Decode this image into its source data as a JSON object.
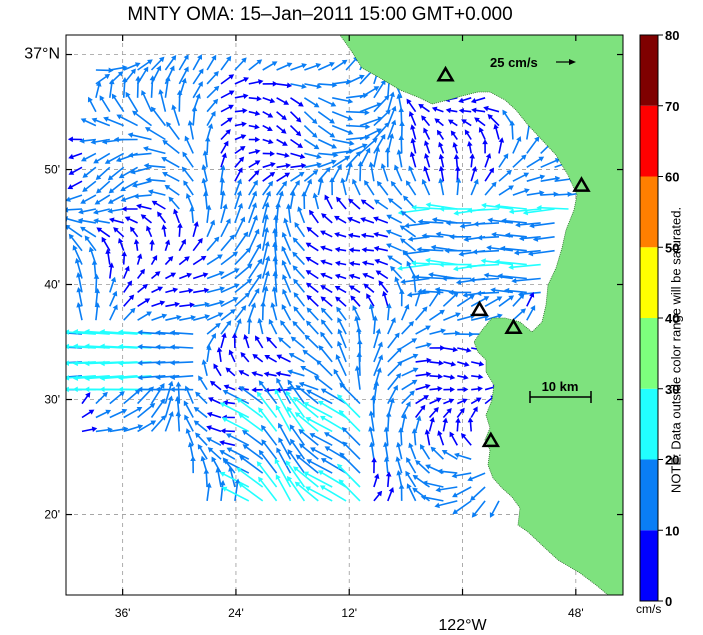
{
  "title": "MNTY OMA: 15–Jan–2011 15:00 GMT+0.000",
  "map": {
    "lat_ticks": [
      {
        "label": "37°N",
        "lat": 37.0,
        "big": true
      },
      {
        "label": "50'",
        "lat": 36.8333
      },
      {
        "label": "40'",
        "lat": 36.6667
      },
      {
        "label": "30'",
        "lat": 36.5
      },
      {
        "label": "20'",
        "lat": 36.3333
      }
    ],
    "lon_ticks": [
      {
        "label": "36'",
        "lon": -122.6
      },
      {
        "label": "24'",
        "lon": -122.4
      },
      {
        "label": "12'",
        "lon": -122.2
      },
      {
        "label": "122°W",
        "lon": -122.0,
        "big": true
      },
      {
        "label": "48'",
        "lon": -121.8
      }
    ],
    "reference_arrow": {
      "label": "25 cm/s",
      "speed_cms": 25
    },
    "scale_bar": {
      "label": "10 km",
      "km": 10
    },
    "land_color": "#7ee27e",
    "sites": [
      {
        "lat": 36.97,
        "lon": -122.03
      },
      {
        "lat": 36.81,
        "lon": -121.79
      },
      {
        "lat": 36.63,
        "lon": -121.97
      },
      {
        "lat": 36.604,
        "lon": -121.91
      },
      {
        "lat": 36.44,
        "lon": -121.95
      }
    ]
  },
  "colorbar": {
    "units": "cm/s",
    "ticks": [
      "0",
      "10",
      "20",
      "30",
      "40",
      "50",
      "60",
      "70",
      "80"
    ],
    "colors": [
      "#0000ff",
      "#0a7ef5",
      "#22ffff",
      "#7dff7d",
      "#ffff00",
      "#ff7f00",
      "#ff0000",
      "#7f0000"
    ],
    "note": "NOTE: Data outside color range will be saturated."
  }
}
